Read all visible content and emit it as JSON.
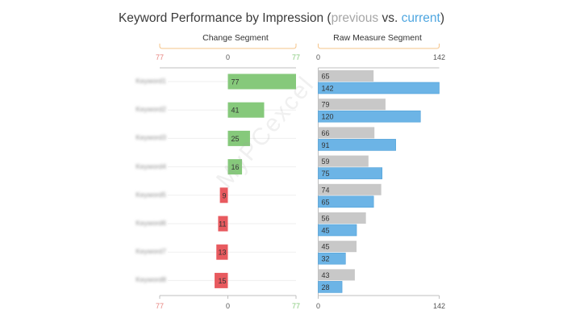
{
  "title": {
    "prefix": "Keyword Performance by Impression (",
    "previous": "previous",
    "middle": " vs. ",
    "current": "current",
    "suffix": ")"
  },
  "colors": {
    "positive": "#86c97b",
    "negative": "#e85a5f",
    "previous": "#c8c8c8",
    "current": "#6cb4e6",
    "bracket": "#f5c48a",
    "axis": "#bfbfbf",
    "negative_text": "#e7837f",
    "positive_text": "#86c97b"
  },
  "watermark": "MyPCexcel",
  "chart_data": [
    {
      "type": "bar",
      "orientation": "horizontal",
      "title": "Change Segment",
      "categories": [
        "Keyword1",
        "Keyword2",
        "Keyword3",
        "Keyword4",
        "Keyword5",
        "Keyword6",
        "Keyword7",
        "Keyword8"
      ],
      "values": [
        77,
        41,
        25,
        16,
        -9,
        -11,
        -13,
        -15
      ],
      "data_labels": [
        "77",
        "41",
        "25",
        "16",
        "9",
        "11",
        "13",
        "15"
      ],
      "xlim": [
        -77,
        77
      ],
      "tick_labels": [
        "77",
        "0",
        "77"
      ]
    },
    {
      "type": "bar",
      "orientation": "horizontal",
      "title": "Raw Measure Segment",
      "categories": [
        "Keyword1",
        "Keyword2",
        "Keyword3",
        "Keyword4",
        "Keyword5",
        "Keyword6",
        "Keyword7",
        "Keyword8"
      ],
      "series": [
        {
          "name": "previous",
          "values": [
            65,
            79,
            66,
            59,
            74,
            56,
            45,
            43
          ]
        },
        {
          "name": "current",
          "values": [
            142,
            120,
            91,
            75,
            65,
            45,
            32,
            28
          ]
        }
      ],
      "xlim": [
        0,
        142
      ],
      "tick_labels": [
        "0",
        "142"
      ]
    }
  ]
}
